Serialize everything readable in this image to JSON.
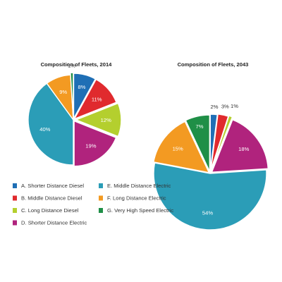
{
  "chart_data": [
    {
      "type": "pie",
      "title": "Composition of Fleets, 2014",
      "slices": [
        {
          "key": "A",
          "value": 8,
          "label": "8%",
          "color": "#1f6fb5",
          "label_color": "#ffffff"
        },
        {
          "key": "B",
          "value": 11,
          "label": "11%",
          "color": "#e02a2e",
          "label_color": "#ffffff"
        },
        {
          "key": "C",
          "value": 12,
          "label": "12%",
          "color": "#b4cf2e",
          "label_color": "#ffffff"
        },
        {
          "key": "D",
          "value": 19,
          "label": "19%",
          "color": "#b0237d",
          "label_color": "#ffffff"
        },
        {
          "key": "E",
          "value": 40,
          "label": "40%",
          "color": "#2b9db7",
          "label_color": "#ffffff"
        },
        {
          "key": "F",
          "value": 9,
          "label": "9%",
          "color": "#f39a22",
          "label_color": "#ffffff"
        },
        {
          "key": "G",
          "value": 1,
          "label": "1%",
          "color": "#1f8f47",
          "label_color": "#333333"
        }
      ]
    },
    {
      "type": "pie",
      "title": "Composition of Fleets, 2043",
      "slices": [
        {
          "key": "A",
          "value": 2,
          "label": "2%",
          "color": "#1f6fb5",
          "label_color": "#333333"
        },
        {
          "key": "B",
          "value": 3,
          "label": "3%",
          "color": "#e02a2e",
          "label_color": "#333333"
        },
        {
          "key": "C",
          "value": 1,
          "label": "1%",
          "color": "#b4cf2e",
          "label_color": "#333333"
        },
        {
          "key": "D",
          "value": 18,
          "label": "18%",
          "color": "#b0237d",
          "label_color": "#ffffff"
        },
        {
          "key": "E",
          "value": 54,
          "label": "54%",
          "color": "#2b9db7",
          "label_color": "#ffffff"
        },
        {
          "key": "F",
          "value": 15,
          "label": "15%",
          "color": "#f39a22",
          "label_color": "#ffffff"
        },
        {
          "key": "G",
          "value": 7,
          "label": "7%",
          "color": "#1f8f47",
          "label_color": "#ffffff"
        }
      ]
    }
  ],
  "legend": [
    {
      "key": "A",
      "label": "A. Shorter Distance Diesel",
      "color": "#1f6fb5"
    },
    {
      "key": "B",
      "label": "B. Middle Distance Diesel",
      "color": "#e02a2e"
    },
    {
      "key": "C",
      "label": "C. Long Distance Diesel",
      "color": "#b4cf2e"
    },
    {
      "key": "D",
      "label": "D. Shorter Distance Electric",
      "color": "#b0237d"
    },
    {
      "key": "E",
      "label": "E. Middle Distance Electric",
      "color": "#2b9db7"
    },
    {
      "key": "F",
      "label": "F. Long Distance Electric",
      "color": "#f39a22"
    },
    {
      "key": "G",
      "label": "G. Very High Speed Electric",
      "color": "#1f8f47"
    }
  ]
}
